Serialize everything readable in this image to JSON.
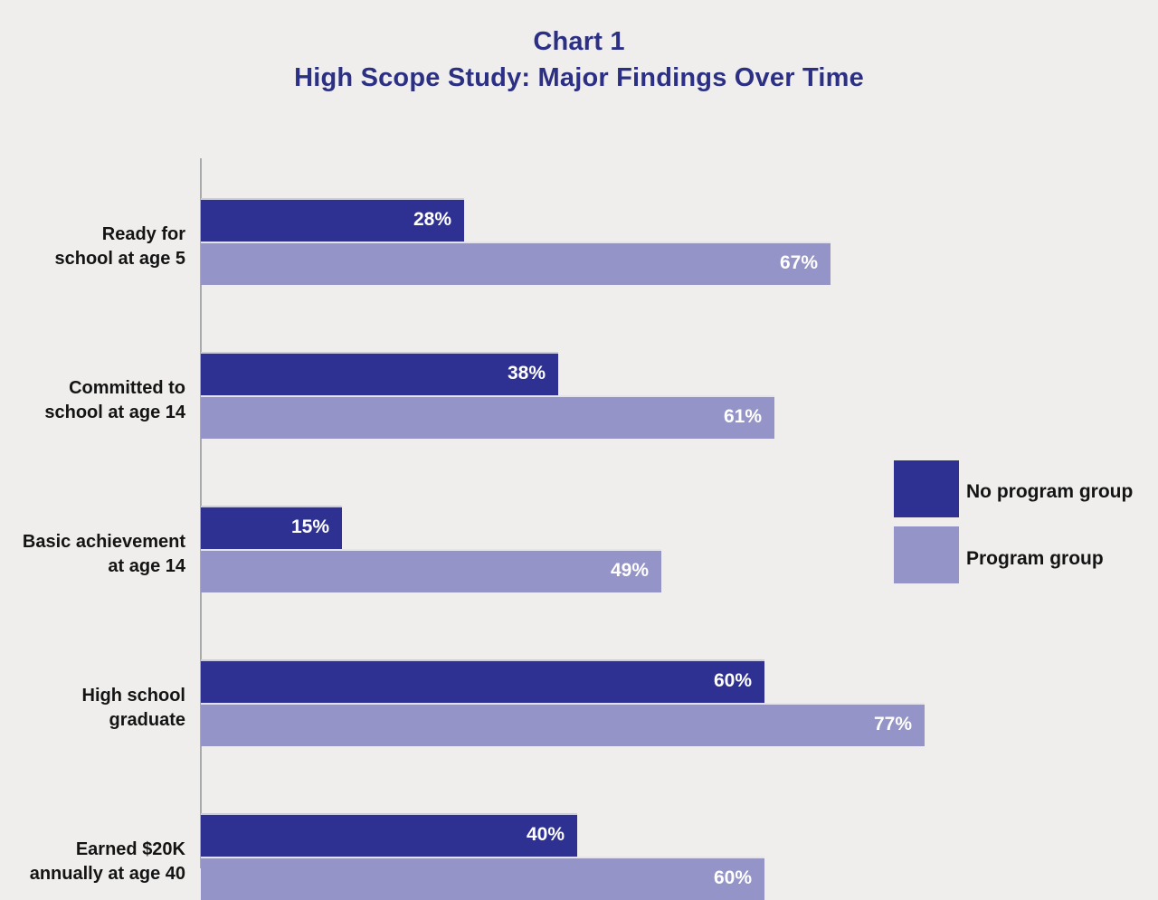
{
  "title": "Chart 1",
  "subtitle": "High Scope Study: Major Findings Over Time",
  "colors": {
    "background": "#efeeec",
    "title_text": "#2b3084",
    "no_program_bar": "#2e3192",
    "program_bar": "#9494c8",
    "value_label_text": "#ffffff",
    "category_label_text": "#141414",
    "axis_line": "#aaaaaa"
  },
  "legend": {
    "position": "right",
    "entries": [
      {
        "label": "No program group",
        "color": "#2e3192"
      },
      {
        "label": "Program group",
        "color": "#9494c8"
      }
    ]
  },
  "chart_data": {
    "type": "bar",
    "orientation": "horizontal",
    "title": "Chart 1",
    "subtitle": "High Scope Study: Major Findings Over Time",
    "categories": [
      "Ready for school at age 5",
      "Committed to school at age 14",
      "Basic achievement at age 14",
      "High school graduate",
      "Earned $20K annually at age 40"
    ],
    "category_lines": [
      [
        "Ready for",
        "school at age 5"
      ],
      [
        "Committed to",
        "school at age 14"
      ],
      [
        "Basic achievement",
        "at age 14"
      ],
      [
        "High school",
        "graduate"
      ],
      [
        "Earned $20K",
        "annually at age 40"
      ]
    ],
    "series": [
      {
        "name": "No program group",
        "color": "#2e3192",
        "values": [
          28,
          38,
          15,
          60,
          40
        ]
      },
      {
        "name": "Program group",
        "color": "#9494c8",
        "values": [
          67,
          61,
          49,
          77,
          60
        ]
      }
    ],
    "value_suffix": "%",
    "value_labels_shown": true,
    "xlim": [
      0,
      100
    ],
    "grid": false,
    "legend_position": "right",
    "notes": "Last row partially clipped by bottom edge of image"
  }
}
